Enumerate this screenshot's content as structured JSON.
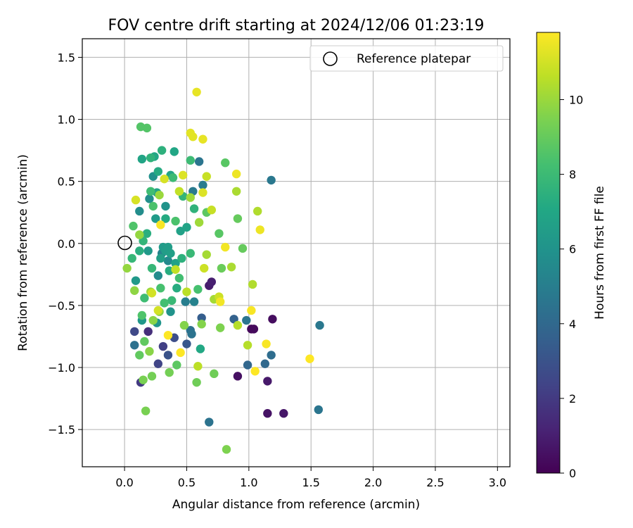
{
  "chart_data": {
    "type": "scatter",
    "title": "FOV centre drift starting at 2024/12/06 01:23:19",
    "xlabel": "Angular distance from reference (arcmin)",
    "ylabel": "Rotation from reference (arcmin)",
    "xlim": [
      -0.34,
      3.1
    ],
    "ylim": [
      -1.8,
      1.65
    ],
    "xticks": [
      0.0,
      0.5,
      1.0,
      1.5,
      2.0,
      2.5,
      3.0
    ],
    "yticks": [
      -1.5,
      -1.0,
      -0.5,
      0.0,
      0.5,
      1.0,
      1.5
    ],
    "xtick_labels": [
      "0.0",
      "0.5",
      "1.0",
      "1.5",
      "2.0",
      "2.5",
      "3.0"
    ],
    "ytick_labels": [
      "−1.5",
      "−1.0",
      "−0.5",
      "0.0",
      "0.5",
      "1.0",
      "1.5"
    ],
    "grid": true,
    "colormap": "viridis",
    "colorbar": {
      "label": "Hours from first FF file",
      "range": [
        0,
        11.8
      ],
      "ticks": [
        0,
        2,
        4,
        6,
        8,
        10
      ],
      "tick_labels": [
        "0",
        "2",
        "4",
        "6",
        "8",
        "10"
      ]
    },
    "legend": {
      "position": "top-right",
      "entries": [
        "Reference platepar"
      ]
    },
    "reference_point": {
      "x": 0.0,
      "y": 0.0
    },
    "points": [
      {
        "x": 1.02,
        "y": -0.69,
        "h": 0.2
      },
      {
        "x": 1.04,
        "y": -0.69,
        "h": 0.3
      },
      {
        "x": 1.19,
        "y": -0.61,
        "h": 0.4
      },
      {
        "x": 0.91,
        "y": -1.07,
        "h": 0.5
      },
      {
        "x": 1.15,
        "y": -1.37,
        "h": 0.6
      },
      {
        "x": 1.28,
        "y": -1.37,
        "h": 0.7
      },
      {
        "x": 1.15,
        "y": -1.11,
        "h": 0.8
      },
      {
        "x": 0.68,
        "y": -0.34,
        "h": 0.9
      },
      {
        "x": 0.7,
        "y": -0.31,
        "h": 1.0
      },
      {
        "x": 0.19,
        "y": -0.71,
        "h": 1.6
      },
      {
        "x": 0.13,
        "y": -1.12,
        "h": 2.0
      },
      {
        "x": 0.31,
        "y": -0.83,
        "h": 2.2
      },
      {
        "x": 0.27,
        "y": -0.97,
        "h": 2.4
      },
      {
        "x": 0.08,
        "y": -0.71,
        "h": 2.6
      },
      {
        "x": 0.4,
        "y": -0.76,
        "h": 2.8
      },
      {
        "x": 0.35,
        "y": -0.9,
        "h": 3.0
      },
      {
        "x": 0.5,
        "y": -0.81,
        "h": 3.2
      },
      {
        "x": 0.62,
        "y": -0.6,
        "h": 3.5
      },
      {
        "x": 0.88,
        "y": -0.61,
        "h": 3.7
      },
      {
        "x": 0.99,
        "y": -0.98,
        "h": 3.9
      },
      {
        "x": 1.13,
        "y": -0.97,
        "h": 4.0
      },
      {
        "x": 1.18,
        "y": -0.9,
        "h": 4.2
      },
      {
        "x": 0.08,
        "y": -0.82,
        "h": 4.4
      },
      {
        "x": 0.53,
        "y": -0.7,
        "h": 4.4
      },
      {
        "x": 0.54,
        "y": -0.73,
        "h": 4.5
      },
      {
        "x": 0.98,
        "y": -0.62,
        "h": 4.6
      },
      {
        "x": 0.6,
        "y": 0.66,
        "h": 4.6
      },
      {
        "x": 1.18,
        "y": 0.51,
        "h": 4.7
      },
      {
        "x": 1.57,
        "y": -0.66,
        "h": 4.7
      },
      {
        "x": 1.56,
        "y": -1.34,
        "h": 4.6
      },
      {
        "x": 0.68,
        "y": -1.44,
        "h": 4.5
      },
      {
        "x": 0.55,
        "y": 0.42,
        "h": 4.8
      },
      {
        "x": 0.63,
        "y": 0.47,
        "h": 4.9
      },
      {
        "x": 0.49,
        "y": -0.47,
        "h": 5.0
      },
      {
        "x": 0.56,
        "y": -0.47,
        "h": 5.2
      },
      {
        "x": 0.3,
        "y": -0.08,
        "h": 5.3
      },
      {
        "x": 0.35,
        "y": -0.14,
        "h": 5.5
      },
      {
        "x": 0.27,
        "y": -0.26,
        "h": 5.6
      },
      {
        "x": 0.12,
        "y": 0.26,
        "h": 5.7
      },
      {
        "x": 0.2,
        "y": 0.36,
        "h": 5.8
      },
      {
        "x": 0.23,
        "y": 0.54,
        "h": 5.9
      },
      {
        "x": 0.33,
        "y": 0.3,
        "h": 6.0
      },
      {
        "x": 0.37,
        "y": -0.55,
        "h": 6.0
      },
      {
        "x": 0.26,
        "y": -0.64,
        "h": 6.1
      },
      {
        "x": 0.14,
        "y": -0.62,
        "h": 6.2
      },
      {
        "x": 0.09,
        "y": -0.3,
        "h": 6.3
      },
      {
        "x": 0.19,
        "y": -0.06,
        "h": 6.3
      },
      {
        "x": 0.25,
        "y": 0.2,
        "h": 6.4
      },
      {
        "x": 0.31,
        "y": -0.03,
        "h": 6.4
      },
      {
        "x": 0.33,
        "y": -0.06,
        "h": 6.5
      },
      {
        "x": 0.35,
        "y": -0.03,
        "h": 6.5
      },
      {
        "x": 0.37,
        "y": -0.08,
        "h": 6.6
      },
      {
        "x": 0.29,
        "y": -0.12,
        "h": 6.6
      },
      {
        "x": 0.41,
        "y": -0.16,
        "h": 6.7
      },
      {
        "x": 0.45,
        "y": 0.1,
        "h": 6.7
      },
      {
        "x": 0.5,
        "y": 0.13,
        "h": 6.8
      },
      {
        "x": 0.26,
        "y": 0.41,
        "h": 6.8
      },
      {
        "x": 0.37,
        "y": 0.55,
        "h": 6.9
      },
      {
        "x": 0.14,
        "y": 0.68,
        "h": 6.9
      },
      {
        "x": 0.24,
        "y": 0.7,
        "h": 7.0
      },
      {
        "x": 0.4,
        "y": 0.74,
        "h": 7.0
      },
      {
        "x": 0.61,
        "y": -0.85,
        "h": 7.1
      },
      {
        "x": 0.27,
        "y": 0.58,
        "h": 7.2
      },
      {
        "x": 0.33,
        "y": 0.2,
        "h": 7.2
      },
      {
        "x": 0.36,
        "y": -0.22,
        "h": 7.3
      },
      {
        "x": 0.42,
        "y": -0.36,
        "h": 7.3
      },
      {
        "x": 0.12,
        "y": -0.06,
        "h": 7.4
      },
      {
        "x": 0.18,
        "y": 0.08,
        "h": 7.4
      },
      {
        "x": 0.46,
        "y": -0.12,
        "h": 7.5
      },
      {
        "x": 0.3,
        "y": 0.75,
        "h": 7.5
      },
      {
        "x": 0.21,
        "y": 0.69,
        "h": 7.6
      },
      {
        "x": 0.56,
        "y": 0.28,
        "h": 7.6
      },
      {
        "x": 0.47,
        "y": 0.38,
        "h": 7.7
      },
      {
        "x": 0.15,
        "y": 0.02,
        "h": 7.7
      },
      {
        "x": 0.06,
        "y": -0.12,
        "h": 7.8
      },
      {
        "x": 0.22,
        "y": -0.2,
        "h": 7.8
      },
      {
        "x": 0.38,
        "y": -0.46,
        "h": 7.9
      },
      {
        "x": 0.53,
        "y": -0.08,
        "h": 7.9
      },
      {
        "x": 0.39,
        "y": 0.53,
        "h": 8.0
      },
      {
        "x": 0.53,
        "y": 0.67,
        "h": 8.0
      },
      {
        "x": 0.21,
        "y": 0.42,
        "h": 8.1
      },
      {
        "x": 0.16,
        "y": -0.44,
        "h": 8.1
      },
      {
        "x": 0.32,
        "y": -0.48,
        "h": 8.2
      },
      {
        "x": 0.44,
        "y": -0.28,
        "h": 8.2
      },
      {
        "x": 0.59,
        "y": -0.37,
        "h": 8.3
      },
      {
        "x": 0.29,
        "y": -0.36,
        "h": 8.3
      },
      {
        "x": 0.23,
        "y": 0.3,
        "h": 8.4
      },
      {
        "x": 0.41,
        "y": 0.18,
        "h": 8.4
      },
      {
        "x": 0.14,
        "y": -0.58,
        "h": 8.5
      },
      {
        "x": 0.07,
        "y": 0.14,
        "h": 8.5
      },
      {
        "x": 0.18,
        "y": 0.93,
        "h": 8.6
      },
      {
        "x": 0.13,
        "y": 0.94,
        "h": 8.6
      },
      {
        "x": 0.81,
        "y": 0.65,
        "h": 8.7
      },
      {
        "x": 0.76,
        "y": 0.08,
        "h": 8.7
      },
      {
        "x": 0.66,
        "y": 0.25,
        "h": 8.8
      },
      {
        "x": 0.42,
        "y": -0.98,
        "h": 8.8
      },
      {
        "x": 0.16,
        "y": -0.79,
        "h": 8.9
      },
      {
        "x": 0.12,
        "y": -0.9,
        "h": 8.9
      },
      {
        "x": 0.91,
        "y": 0.2,
        "h": 9.0
      },
      {
        "x": 0.95,
        "y": -0.04,
        "h": 9.0
      },
      {
        "x": 0.78,
        "y": -0.2,
        "h": 9.1
      },
      {
        "x": 0.58,
        "y": -1.12,
        "h": 9.2
      },
      {
        "x": 0.72,
        "y": -1.05,
        "h": 9.2
      },
      {
        "x": 0.36,
        "y": -1.04,
        "h": 9.3
      },
      {
        "x": 0.22,
        "y": -1.07,
        "h": 9.3
      },
      {
        "x": 0.15,
        "y": -1.1,
        "h": 9.4
      },
      {
        "x": 0.17,
        "y": -1.35,
        "h": 9.4
      },
      {
        "x": 0.82,
        "y": -1.66,
        "h": 9.5
      },
      {
        "x": 0.77,
        "y": -0.68,
        "h": 9.5
      },
      {
        "x": 0.62,
        "y": -0.65,
        "h": 9.6
      },
      {
        "x": 0.48,
        "y": -0.66,
        "h": 9.6
      },
      {
        "x": 0.2,
        "y": -0.87,
        "h": 9.7
      },
      {
        "x": 0.23,
        "y": -0.62,
        "h": 9.7
      },
      {
        "x": 0.28,
        "y": -0.55,
        "h": 9.8
      },
      {
        "x": 0.08,
        "y": -0.38,
        "h": 9.8
      },
      {
        "x": 0.02,
        "y": -0.2,
        "h": 9.9
      },
      {
        "x": 0.12,
        "y": 0.07,
        "h": 9.9
      },
      {
        "x": 0.21,
        "y": -0.39,
        "h": 10.0
      },
      {
        "x": 0.28,
        "y": 0.39,
        "h": 10.0
      },
      {
        "x": 0.53,
        "y": 0.37,
        "h": 10.1
      },
      {
        "x": 0.6,
        "y": 0.17,
        "h": 10.1
      },
      {
        "x": 0.66,
        "y": -0.09,
        "h": 10.2
      },
      {
        "x": 0.72,
        "y": -0.45,
        "h": 10.2
      },
      {
        "x": 0.86,
        "y": -0.19,
        "h": 10.3
      },
      {
        "x": 0.9,
        "y": 0.42,
        "h": 10.3
      },
      {
        "x": 1.07,
        "y": 0.26,
        "h": 10.4
      },
      {
        "x": 1.03,
        "y": -0.33,
        "h": 10.4
      },
      {
        "x": 0.91,
        "y": -0.66,
        "h": 10.5
      },
      {
        "x": 0.99,
        "y": -0.82,
        "h": 10.5
      },
      {
        "x": 0.59,
        "y": -0.99,
        "h": 10.6
      },
      {
        "x": 0.5,
        "y": -0.39,
        "h": 10.6
      },
      {
        "x": 0.41,
        "y": -0.21,
        "h": 10.7
      },
      {
        "x": 0.44,
        "y": 0.42,
        "h": 10.7
      },
      {
        "x": 0.66,
        "y": 0.54,
        "h": 10.8
      },
      {
        "x": 0.7,
        "y": 0.27,
        "h": 10.8
      },
      {
        "x": 0.76,
        "y": -0.43,
        "h": 10.9
      },
      {
        "x": 0.64,
        "y": -0.2,
        "h": 10.9
      },
      {
        "x": 0.27,
        "y": -0.54,
        "h": 11.0
      },
      {
        "x": 0.22,
        "y": -0.4,
        "h": 11.0
      },
      {
        "x": 0.09,
        "y": 0.35,
        "h": 11.1
      },
      {
        "x": 0.32,
        "y": 0.52,
        "h": 11.1
      },
      {
        "x": 0.47,
        "y": 0.55,
        "h": 11.2
      },
      {
        "x": 0.63,
        "y": 0.41,
        "h": 11.2
      },
      {
        "x": 0.55,
        "y": 0.86,
        "h": 11.3
      },
      {
        "x": 0.53,
        "y": 0.89,
        "h": 11.3
      },
      {
        "x": 0.63,
        "y": 0.84,
        "h": 11.4
      },
      {
        "x": 0.58,
        "y": 1.22,
        "h": 11.4
      },
      {
        "x": 0.9,
        "y": 0.56,
        "h": 11.5
      },
      {
        "x": 1.09,
        "y": 0.11,
        "h": 11.5
      },
      {
        "x": 0.81,
        "y": -0.03,
        "h": 11.6
      },
      {
        "x": 0.77,
        "y": -0.47,
        "h": 11.6
      },
      {
        "x": 1.02,
        "y": -0.54,
        "h": 11.7
      },
      {
        "x": 1.14,
        "y": -0.81,
        "h": 11.7
      },
      {
        "x": 1.05,
        "y": -1.03,
        "h": 11.8
      },
      {
        "x": 0.35,
        "y": -0.74,
        "h": 11.8
      },
      {
        "x": 0.45,
        "y": -0.88,
        "h": 11.8
      },
      {
        "x": 1.49,
        "y": -0.93,
        "h": 11.8
      },
      {
        "x": 0.29,
        "y": 0.15,
        "h": 11.7
      }
    ]
  }
}
